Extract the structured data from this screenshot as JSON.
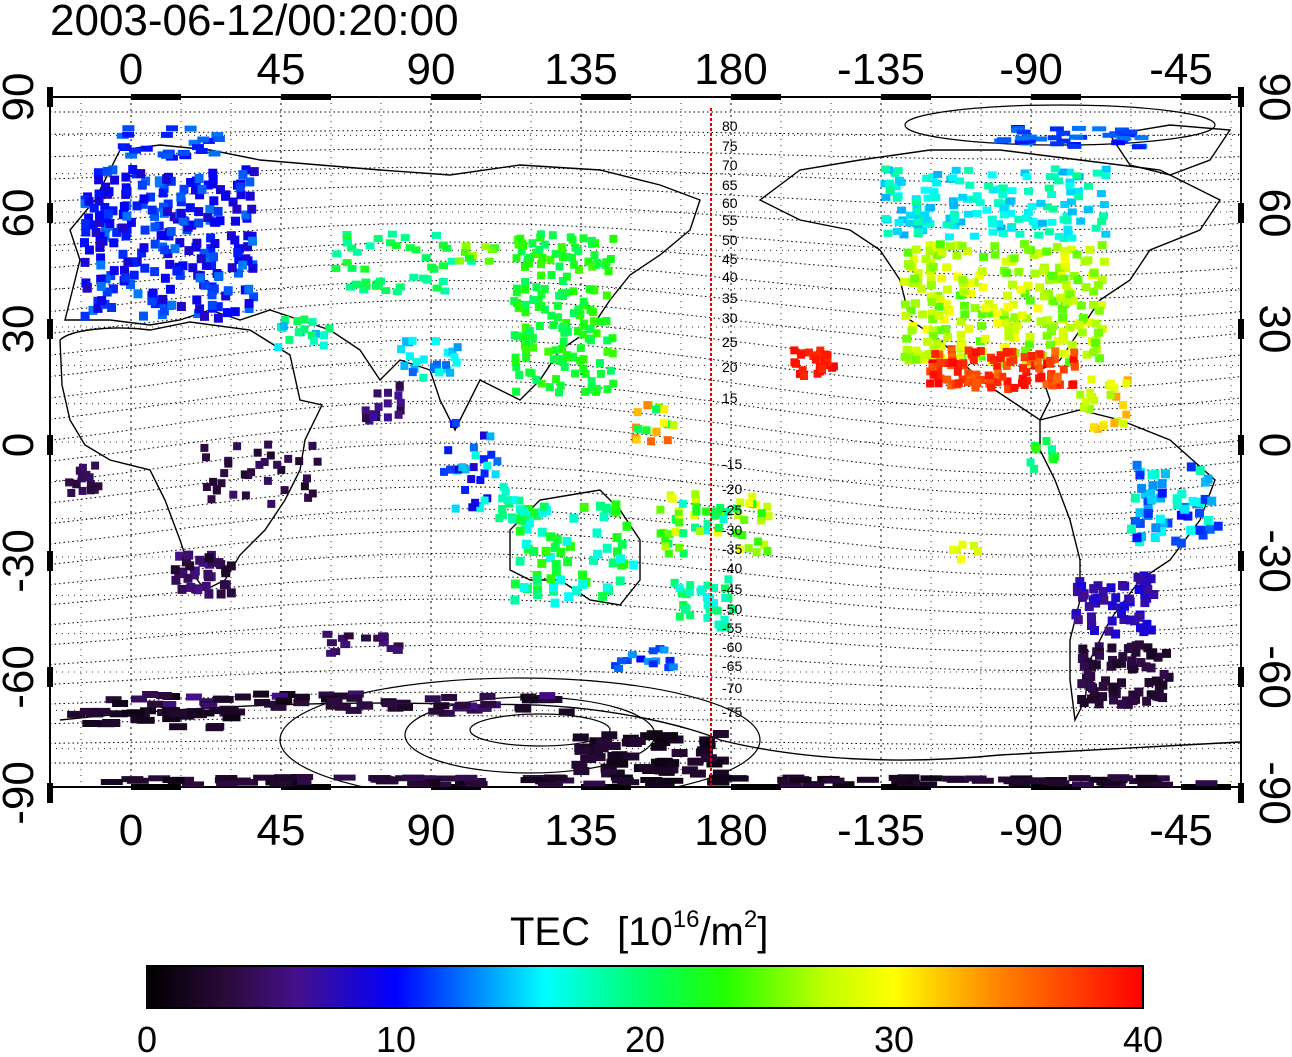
{
  "title": "2003-06-12/00:20:00",
  "top_axis_labels": [
    "0",
    "45",
    "90",
    "135",
    "180",
    "-135",
    "-90",
    "-45"
  ],
  "bottom_axis_labels": [
    "0",
    "45",
    "90",
    "135",
    "180",
    "-135",
    "-90",
    "-45"
  ],
  "left_axis_labels": [
    "90",
    "60",
    "30",
    "0",
    "-30",
    "-60",
    "-90"
  ],
  "right_axis_labels": [
    "90",
    "60",
    "30",
    "0",
    "-30",
    "-60",
    "-90"
  ],
  "red_line_labels": [
    "80",
    "75",
    "70",
    "65",
    "60",
    "55",
    "50",
    "45",
    "40",
    "35",
    "30",
    "25",
    "20",
    "15",
    "-15",
    "-20",
    "-25",
    "-30",
    "-35",
    "-40",
    "-45",
    "-50",
    "-55",
    "-60",
    "-65",
    "-70",
    "-75"
  ],
  "colorbar": {
    "title": "TEC",
    "unit_base": "[10",
    "unit_exp": "16",
    "unit_mid": "/m",
    "unit_exp2": "2",
    "unit_end": "]",
    "tick_labels": [
      "0",
      "10",
      "20",
      "30",
      "40"
    ]
  },
  "colors": {
    "frame": "#000000",
    "grid": "#000000",
    "meridian_line": "#e00000"
  }
}
